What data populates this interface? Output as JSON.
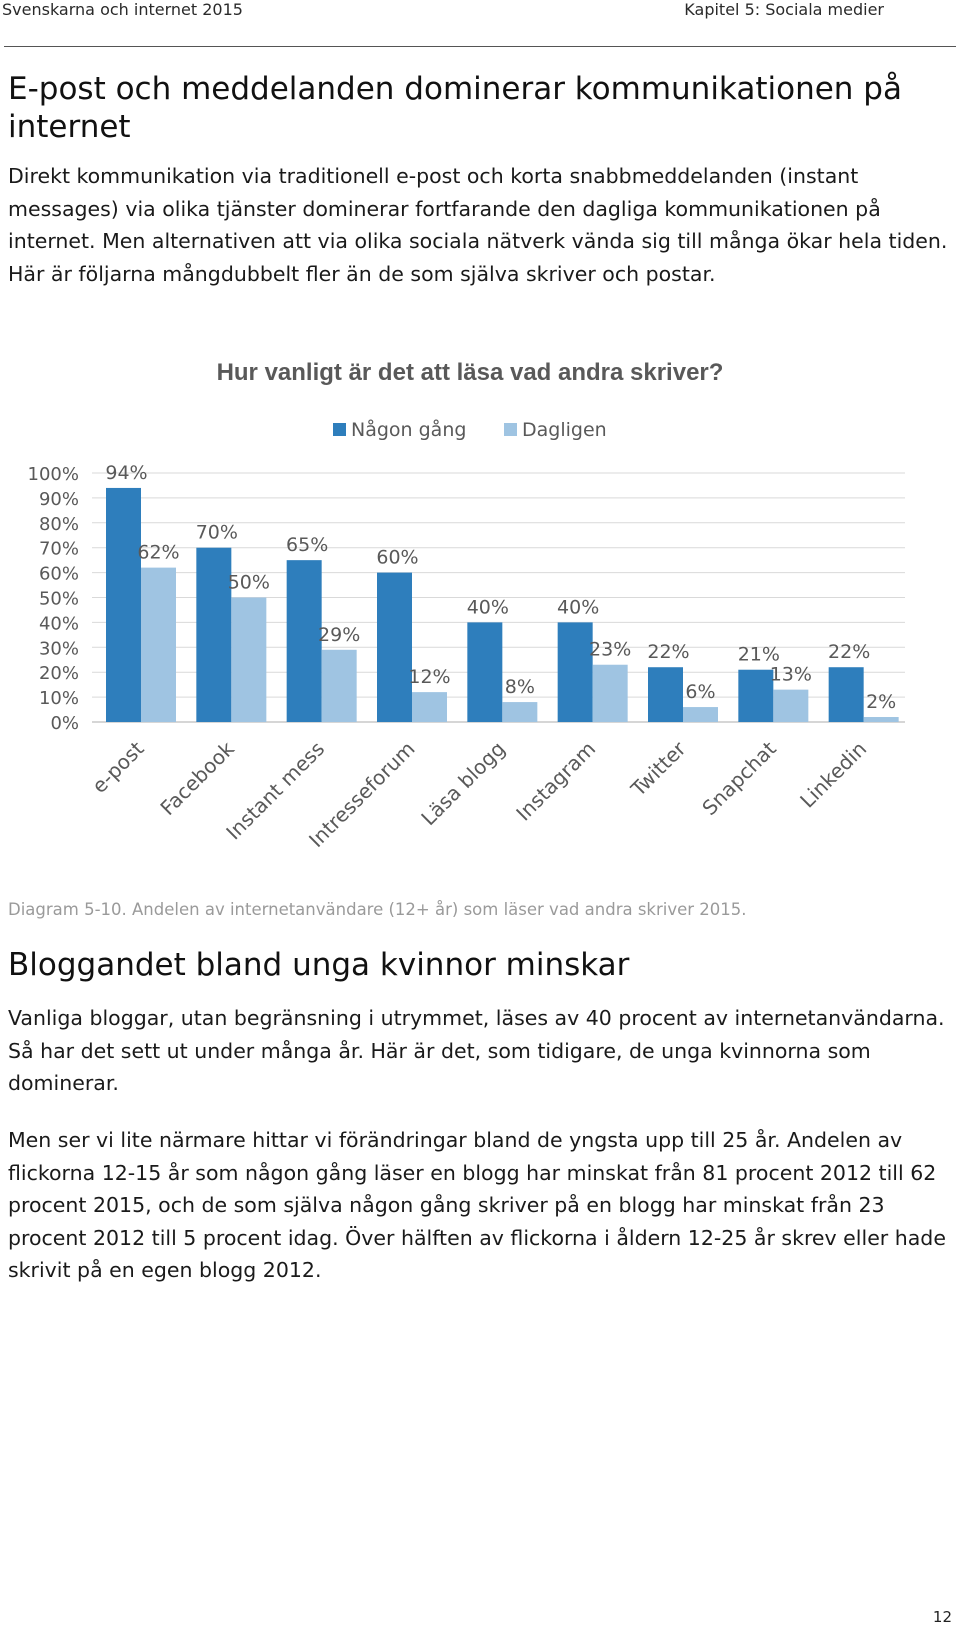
{
  "header": {
    "left": "Svenskarna och internet 2015",
    "right": "Kapitel 5: Sociala medier"
  },
  "section1": {
    "heading": "E-post och meddelanden dominerar kommunikationen på internet",
    "paragraph": "Direkt kommunikation via traditionell e-post och korta snabbmeddelanden (instant messages) via olika tjänster dominerar fortfarande den dagliga kommunikationen på internet. Men alternativen att via olika sociala nätverk vända sig till många ökar hela tiden. Här är följarna mångdubbelt fler än de som själva skriver och postar."
  },
  "chart_data": {
    "type": "bar",
    "title": "Hur vanligt är det att läsa vad andra skriver?",
    "categories": [
      "e-post",
      "Facebook",
      "Instant mess",
      "Intresseforum",
      "Läsa blogg",
      "Instagram",
      "Twitter",
      "Snapchat",
      "Linkedin"
    ],
    "series": [
      {
        "name": "Någon gång",
        "color": "#2e7ebc",
        "values": [
          94,
          70,
          65,
          60,
          40,
          40,
          22,
          21,
          22
        ]
      },
      {
        "name": "Dagligen",
        "color": "#9fc4e2",
        "values": [
          62,
          50,
          29,
          12,
          8,
          23,
          6,
          13,
          2
        ]
      }
    ],
    "ylim": [
      0,
      100
    ],
    "yticks": [
      "0%",
      "10%",
      "20%",
      "30%",
      "40%",
      "50%",
      "60%",
      "70%",
      "80%",
      "90%",
      "100%"
    ],
    "value_suffix": "%",
    "grid": true,
    "legend": "top"
  },
  "caption": "Diagram 5-10. Andelen av internetanvändare (12+ år) som läser vad andra skriver 2015.",
  "section2": {
    "heading": "Bloggandet bland unga kvinnor minskar",
    "paragraph1": "Vanliga bloggar, utan begränsning i utrymmet, läses av 40 procent av internetanvändarna. Så har det sett ut under många år. Här är det, som tidigare, de unga kvinnorna som dominerar.",
    "paragraph2": "Men ser vi lite närmare hittar vi förändringar bland de yngsta upp till 25 år. Andelen av flickorna 12-15 år som någon gång läser en blogg har minskat från 81 procent 2012 till 62 procent 2015, och de som själva någon gång skriver på en blogg har minskat från 23 procent 2012 till 5 procent idag. Över hälften av flickorna i åldern 12-25 år skrev eller hade skrivit på en egen blogg 2012."
  },
  "page_number": "12"
}
